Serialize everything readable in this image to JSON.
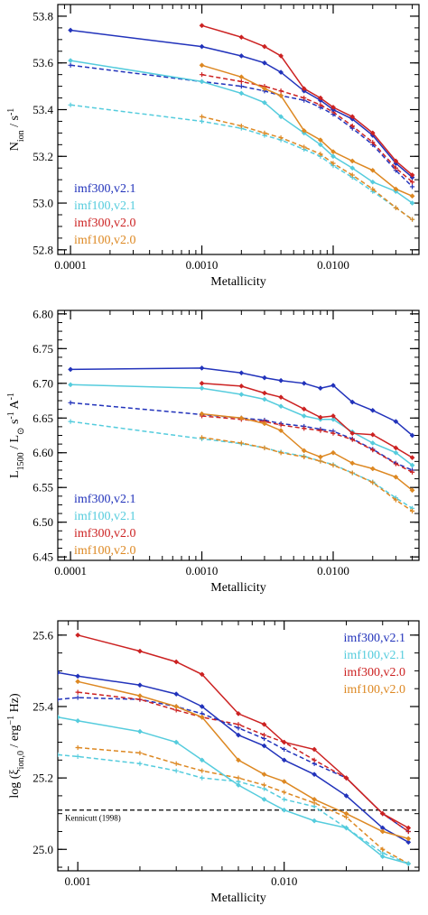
{
  "colors": {
    "imf300_v21": "#2233bb",
    "imf100_v21": "#55ccdd",
    "imf300_v20": "#cc2222",
    "imf100_v20": "#dd8822"
  },
  "chart_data": [
    {
      "type": "line",
      "xlabel": "Metallicity",
      "ylabel": "N_ion / s^-1",
      "xscale": "log",
      "xlim": [
        8e-05,
        0.045
      ],
      "ylim": [
        52.78,
        53.85
      ],
      "x_ticks": [
        0.0001,
        0.001,
        0.01
      ],
      "x_tick_labels": [
        "0.0001",
        "0.0010",
        "0.0100"
      ],
      "y_ticks": [
        52.8,
        53.0,
        53.2,
        53.4,
        53.6,
        53.8
      ],
      "y_tick_labels": [
        "52.8",
        "53.0",
        "53.2",
        "53.4",
        "53.6",
        "53.8"
      ],
      "legend": "bottom-left",
      "series": [
        {
          "name": "imf300,v2.1",
          "color_key": "imf300_v21",
          "dash": false,
          "marker": "diamond",
          "x": [
            0.0001,
            0.001,
            0.002,
            0.003,
            0.004,
            0.006,
            0.008,
            0.01,
            0.014,
            0.02,
            0.03,
            0.04
          ],
          "y": [
            53.74,
            53.67,
            53.63,
            53.6,
            53.56,
            53.48,
            53.44,
            53.4,
            53.36,
            53.29,
            53.17,
            53.11
          ]
        },
        {
          "name": "imf100,v2.1",
          "color_key": "imf100_v21",
          "dash": false,
          "marker": "diamond",
          "x": [
            0.0001,
            0.001,
            0.002,
            0.003,
            0.004,
            0.006,
            0.008,
            0.01,
            0.014,
            0.02,
            0.03,
            0.04
          ],
          "y": [
            53.61,
            53.52,
            53.47,
            53.43,
            53.37,
            53.3,
            53.25,
            53.2,
            53.15,
            53.09,
            53.05,
            53.0
          ]
        },
        {
          "name": "imf300,v2.0",
          "color_key": "imf300_v20",
          "dash": false,
          "marker": "diamond",
          "x": [
            0.001,
            0.002,
            0.003,
            0.004,
            0.006,
            0.008,
            0.01,
            0.014,
            0.02,
            0.03,
            0.04
          ],
          "y": [
            53.76,
            53.71,
            53.67,
            53.63,
            53.49,
            53.45,
            53.41,
            53.37,
            53.3,
            53.18,
            53.12
          ]
        },
        {
          "name": "imf100,v2.0",
          "color_key": "imf100_v20",
          "dash": false,
          "marker": "diamond",
          "x": [
            0.001,
            0.002,
            0.003,
            0.004,
            0.006,
            0.008,
            0.01,
            0.014,
            0.02,
            0.03,
            0.04
          ],
          "y": [
            53.59,
            53.54,
            53.49,
            53.46,
            53.31,
            53.27,
            53.22,
            53.18,
            53.14,
            53.06,
            53.03
          ]
        },
        {
          "name": "",
          "color_key": "imf300_v21",
          "dash": true,
          "marker": "plus",
          "x": [
            0.0001,
            0.001,
            0.002,
            0.003,
            0.004,
            0.006,
            0.008,
            0.01,
            0.014,
            0.02,
            0.03,
            0.04
          ],
          "y": [
            53.59,
            53.52,
            53.5,
            53.48,
            53.46,
            53.44,
            53.41,
            53.38,
            53.32,
            53.25,
            53.14,
            53.07
          ]
        },
        {
          "name": "",
          "color_key": "imf100_v21",
          "dash": true,
          "marker": "plus",
          "x": [
            0.0001,
            0.001,
            0.002,
            0.003,
            0.004,
            0.006,
            0.008,
            0.01,
            0.014,
            0.02,
            0.03,
            0.04
          ],
          "y": [
            53.42,
            53.35,
            53.32,
            53.29,
            53.27,
            53.23,
            53.2,
            53.16,
            53.11,
            53.05,
            52.98,
            52.93
          ]
        },
        {
          "name": "",
          "color_key": "imf300_v20",
          "dash": true,
          "marker": "plus",
          "x": [
            0.001,
            0.002,
            0.003,
            0.004,
            0.006,
            0.008,
            0.01,
            0.014,
            0.02,
            0.03,
            0.04
          ],
          "y": [
            53.55,
            53.52,
            53.5,
            53.48,
            53.45,
            53.42,
            53.39,
            53.33,
            53.26,
            53.15,
            53.09
          ]
        },
        {
          "name": "",
          "color_key": "imf100_v20",
          "dash": true,
          "marker": "plus",
          "x": [
            0.001,
            0.002,
            0.003,
            0.004,
            0.006,
            0.008,
            0.01,
            0.014,
            0.02,
            0.03,
            0.04
          ],
          "y": [
            53.37,
            53.33,
            53.3,
            53.28,
            53.24,
            53.21,
            53.17,
            53.12,
            53.06,
            52.98,
            52.93
          ]
        }
      ]
    },
    {
      "type": "line",
      "xlabel": "Metallicity",
      "ylabel": "L_1500 / L_⊙ s^-1 A^-1",
      "xscale": "log",
      "xlim": [
        8e-05,
        0.045
      ],
      "ylim": [
        6.445,
        6.805
      ],
      "x_ticks": [
        0.0001,
        0.001,
        0.01
      ],
      "x_tick_labels": [
        "0.0001",
        "0.0010",
        "0.0100"
      ],
      "y_ticks": [
        6.45,
        6.5,
        6.55,
        6.6,
        6.65,
        6.7,
        6.75,
        6.8
      ],
      "y_tick_labels": [
        "6.45",
        "6.50",
        "6.55",
        "6.60",
        "6.65",
        "6.70",
        "6.75",
        "6.80"
      ],
      "legend": "bottom-left",
      "series": [
        {
          "name": "imf300,v2.1",
          "color_key": "imf300_v21",
          "dash": false,
          "marker": "diamond",
          "x": [
            0.0001,
            0.001,
            0.002,
            0.003,
            0.004,
            0.006,
            0.008,
            0.01,
            0.014,
            0.02,
            0.03,
            0.04
          ],
          "y": [
            6.72,
            6.722,
            6.715,
            6.708,
            6.704,
            6.7,
            6.693,
            6.697,
            6.673,
            6.661,
            6.645,
            6.625
          ]
        },
        {
          "name": "imf100,v2.1",
          "color_key": "imf100_v21",
          "dash": false,
          "marker": "diamond",
          "x": [
            0.0001,
            0.001,
            0.002,
            0.003,
            0.004,
            0.006,
            0.008,
            0.01,
            0.014,
            0.02,
            0.03,
            0.04
          ],
          "y": [
            6.698,
            6.693,
            6.684,
            6.677,
            6.667,
            6.653,
            6.648,
            6.648,
            6.63,
            6.614,
            6.6,
            6.582
          ]
        },
        {
          "name": "imf300,v2.0",
          "color_key": "imf300_v20",
          "dash": false,
          "marker": "diamond",
          "x": [
            0.001,
            0.002,
            0.003,
            0.004,
            0.006,
            0.008,
            0.01,
            0.014,
            0.02,
            0.03,
            0.04
          ],
          "y": [
            6.7,
            6.696,
            6.686,
            6.68,
            6.663,
            6.651,
            6.653,
            6.628,
            6.626,
            6.607,
            6.593
          ]
        },
        {
          "name": "imf100,v2.0",
          "color_key": "imf100_v20",
          "dash": false,
          "marker": "diamond",
          "x": [
            0.001,
            0.002,
            0.003,
            0.004,
            0.006,
            0.008,
            0.01,
            0.014,
            0.02,
            0.03,
            0.04
          ],
          "y": [
            6.656,
            6.65,
            6.642,
            6.632,
            6.603,
            6.594,
            6.6,
            6.585,
            6.577,
            6.565,
            6.546
          ]
        },
        {
          "name": "",
          "color_key": "imf300_v21",
          "dash": true,
          "marker": "plus",
          "x": [
            0.0001,
            0.001,
            0.002,
            0.003,
            0.004,
            0.006,
            0.008,
            0.01,
            0.014,
            0.02,
            0.03,
            0.04
          ],
          "y": [
            6.672,
            6.655,
            6.65,
            6.647,
            6.642,
            6.638,
            6.634,
            6.631,
            6.62,
            6.605,
            6.585,
            6.575
          ]
        },
        {
          "name": "",
          "color_key": "imf100_v21",
          "dash": true,
          "marker": "plus",
          "x": [
            0.0001,
            0.001,
            0.002,
            0.003,
            0.004,
            0.006,
            0.008,
            0.01,
            0.014,
            0.02,
            0.03,
            0.04
          ],
          "y": [
            6.645,
            6.62,
            6.613,
            6.607,
            6.601,
            6.595,
            6.588,
            6.583,
            6.571,
            6.558,
            6.535,
            6.52
          ]
        },
        {
          "name": "",
          "color_key": "imf300_v20",
          "dash": true,
          "marker": "plus",
          "x": [
            0.001,
            0.002,
            0.003,
            0.004,
            0.006,
            0.008,
            0.01,
            0.014,
            0.02,
            0.03,
            0.04
          ],
          "y": [
            6.653,
            6.648,
            6.645,
            6.64,
            6.635,
            6.632,
            6.628,
            6.619,
            6.604,
            6.584,
            6.572
          ]
        },
        {
          "name": "",
          "color_key": "imf100_v20",
          "dash": true,
          "marker": "plus",
          "x": [
            0.001,
            0.002,
            0.003,
            0.004,
            0.006,
            0.008,
            0.01,
            0.014,
            0.02,
            0.03,
            0.04
          ],
          "y": [
            6.622,
            6.614,
            6.607,
            6.6,
            6.594,
            6.588,
            6.582,
            6.571,
            6.557,
            6.532,
            6.516
          ]
        }
      ]
    },
    {
      "type": "line",
      "xlabel": "Metallicity",
      "ylabel": "log (ξ_ion,0 / erg^-1 Hz)",
      "xscale": "log",
      "xlim": [
        0.0008,
        0.045
      ],
      "ylim": [
        24.94,
        25.64
      ],
      "x_ticks": [
        0.001,
        0.01
      ],
      "x_tick_labels": [
        "0.001",
        "0.010"
      ],
      "y_ticks": [
        25.0,
        25.2,
        25.4,
        25.6
      ],
      "y_tick_labels": [
        "25.0",
        "25.2",
        "25.4",
        "25.6"
      ],
      "legend": "top-right",
      "annotations": [
        {
          "text": "Kennicutt (1998)",
          "y": 25.11
        }
      ],
      "hline_y": 25.11,
      "series": [
        {
          "name": "imf300,v2.1",
          "color_key": "imf300_v21",
          "dash": false,
          "marker": "diamond",
          "x": [
            0.0008,
            0.001,
            0.002,
            0.003,
            0.004,
            0.006,
            0.008,
            0.01,
            0.014,
            0.02,
            0.03,
            0.04
          ],
          "y": [
            25.495,
            25.485,
            25.46,
            25.435,
            25.4,
            25.32,
            25.29,
            25.25,
            25.21,
            25.15,
            25.06,
            25.02
          ]
        },
        {
          "name": "imf100,v2.1",
          "color_key": "imf100_v21",
          "dash": false,
          "marker": "diamond",
          "x": [
            0.0008,
            0.001,
            0.002,
            0.003,
            0.004,
            0.006,
            0.008,
            0.01,
            0.014,
            0.02,
            0.03,
            0.04
          ],
          "y": [
            25.37,
            25.36,
            25.33,
            25.3,
            25.25,
            25.18,
            25.14,
            25.11,
            25.08,
            25.06,
            24.98,
            24.96
          ]
        },
        {
          "name": "imf300,v2.0",
          "color_key": "imf300_v20",
          "dash": false,
          "marker": "diamond",
          "x": [
            0.001,
            0.002,
            0.003,
            0.004,
            0.006,
            0.008,
            0.01,
            0.014,
            0.02,
            0.03,
            0.04
          ],
          "y": [
            25.6,
            25.555,
            25.525,
            25.49,
            25.38,
            25.35,
            25.3,
            25.28,
            25.2,
            25.1,
            25.06
          ]
        },
        {
          "name": "imf100,v2.0",
          "color_key": "imf100_v20",
          "dash": false,
          "marker": "diamond",
          "x": [
            0.001,
            0.002,
            0.003,
            0.004,
            0.006,
            0.008,
            0.01,
            0.014,
            0.02,
            0.03,
            0.04
          ],
          "y": [
            25.47,
            25.43,
            25.4,
            25.37,
            25.25,
            25.21,
            25.19,
            25.14,
            25.1,
            25.05,
            25.03
          ]
        },
        {
          "name": "",
          "color_key": "imf300_v21",
          "dash": true,
          "marker": "plus",
          "x": [
            0.0008,
            0.001,
            0.002,
            0.003,
            0.004,
            0.006,
            0.008,
            0.01,
            0.014,
            0.02,
            0.03,
            0.04
          ],
          "y": [
            25.42,
            25.425,
            25.42,
            25.4,
            25.38,
            25.34,
            25.31,
            25.28,
            25.24,
            25.2,
            25.1,
            25.05
          ]
        },
        {
          "name": "",
          "color_key": "imf100_v21",
          "dash": true,
          "marker": "plus",
          "x": [
            0.0008,
            0.001,
            0.002,
            0.003,
            0.004,
            0.006,
            0.008,
            0.01,
            0.014,
            0.02,
            0.03,
            0.04
          ],
          "y": [
            25.265,
            25.26,
            25.24,
            25.22,
            25.2,
            25.19,
            25.17,
            25.14,
            25.12,
            25.06,
            24.99,
            24.96
          ]
        },
        {
          "name": "",
          "color_key": "imf300_v20",
          "dash": true,
          "marker": "plus",
          "x": [
            0.001,
            0.002,
            0.003,
            0.004,
            0.006,
            0.008,
            0.01,
            0.014,
            0.02,
            0.03,
            0.04
          ],
          "y": [
            25.44,
            25.42,
            25.39,
            25.37,
            25.35,
            25.32,
            25.3,
            25.25,
            25.2,
            25.1,
            25.05
          ]
        },
        {
          "name": "",
          "color_key": "imf100_v20",
          "dash": true,
          "marker": "plus",
          "x": [
            0.001,
            0.002,
            0.003,
            0.004,
            0.006,
            0.008,
            0.01,
            0.014,
            0.02,
            0.03,
            0.04
          ],
          "y": [
            25.285,
            25.27,
            25.24,
            25.22,
            25.2,
            25.18,
            25.16,
            25.13,
            25.09,
            25.0,
            24.96
          ]
        }
      ]
    }
  ]
}
